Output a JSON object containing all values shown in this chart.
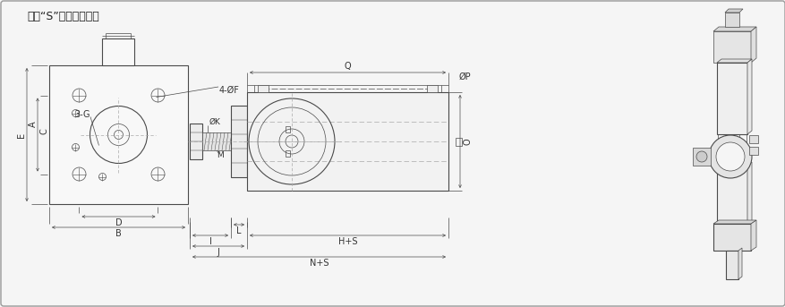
{
  "bg_color": "#f5f5f5",
  "border_color": "#999999",
  "line_color": "#4a4a4a",
  "dim_color": "#4a4a4a",
  "centerline_color": "#aaaaaa",
  "title_text": "注：“S”為缸的總行程",
  "label_A": "A",
  "label_B": "B",
  "label_C": "C",
  "label_D": "D",
  "label_E": "E",
  "label_F": "4-ØF",
  "label_G": "3-G",
  "label_H": "H+S",
  "label_I": "I",
  "label_J": "J",
  "label_K": "ØK",
  "label_L": "L",
  "label_M": "M",
  "label_N": "N+S",
  "label_O": "O",
  "label_P": "ØP",
  "label_Q": "Q",
  "face_color": "#f8f8f8",
  "cyl_color": "#f2f2f2",
  "flange_color": "#ececec",
  "iso_color": "#e8e8e8"
}
